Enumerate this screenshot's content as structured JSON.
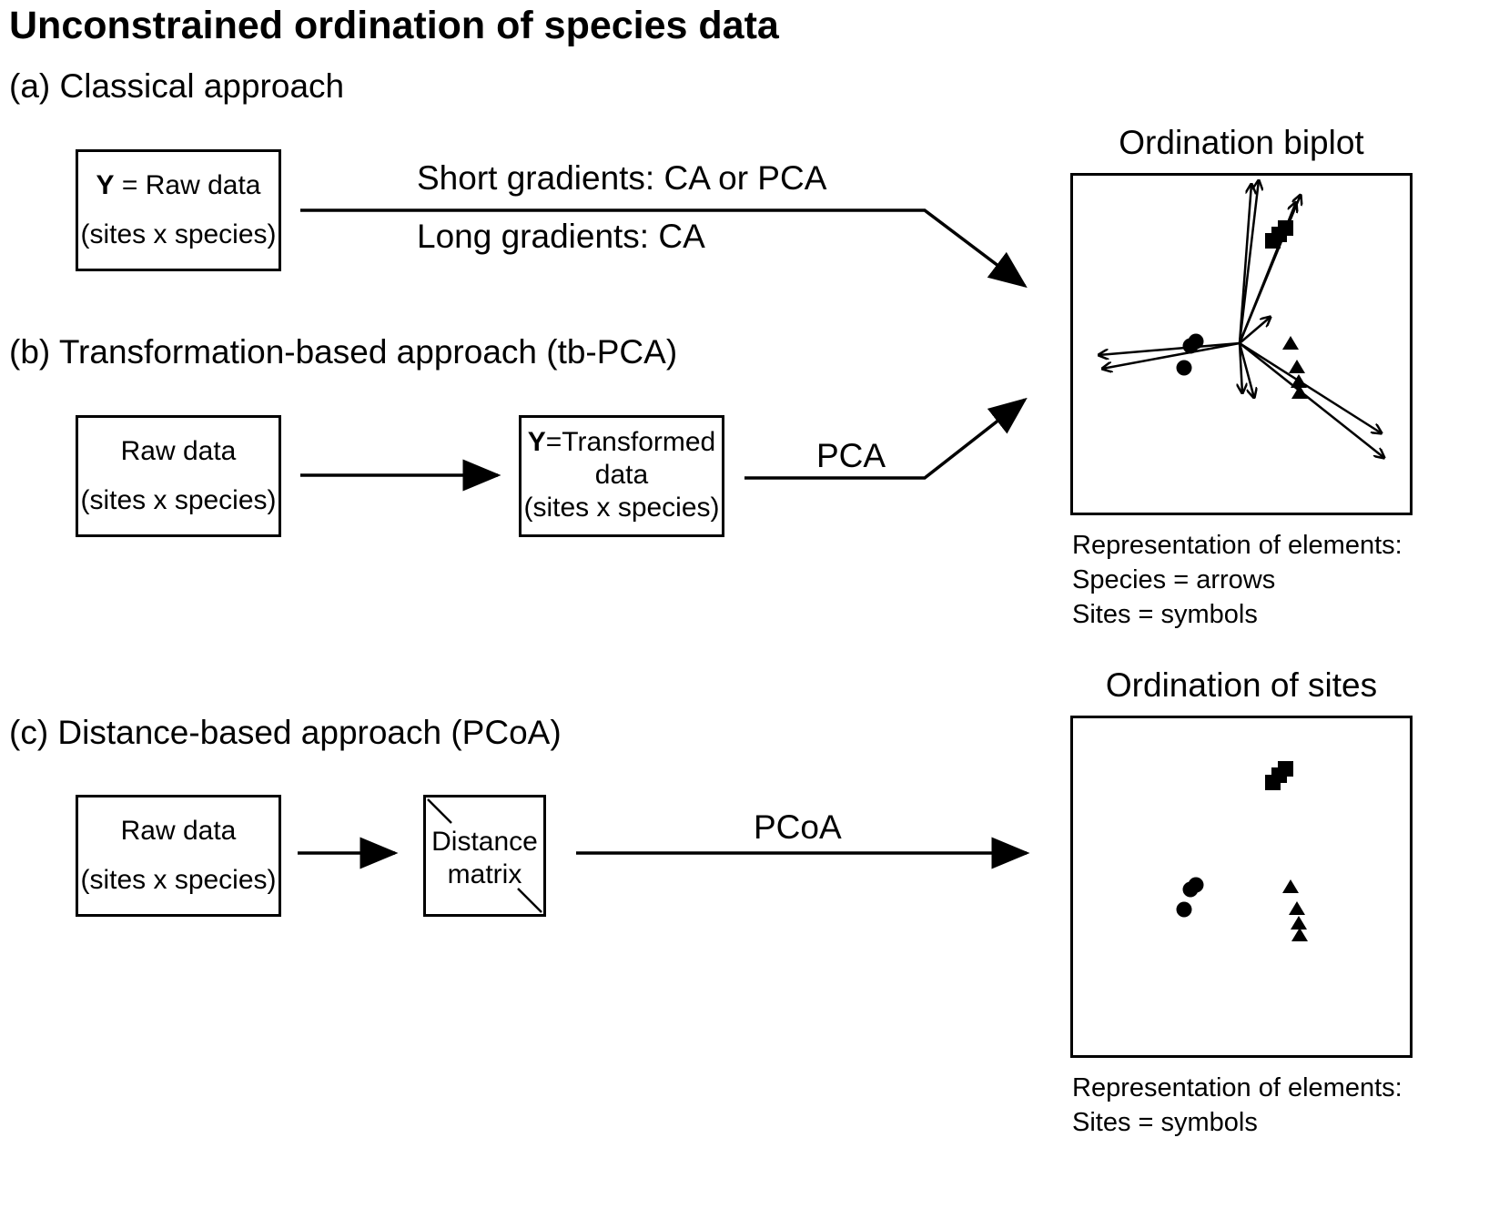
{
  "title": "Unconstrained ordination of species data",
  "sections": {
    "a": "(a) Classical approach",
    "b": "(b) Transformation-based approach (tb-PCA)",
    "c": "(c) Distance-based approach (PCoA)"
  },
  "boxes": {
    "a_raw": {
      "bold": "Y",
      "line1": " = Raw data",
      "line2": "(sites x species)"
    },
    "b_raw": {
      "line1": "Raw data",
      "line2": "(sites x species)"
    },
    "b_trans": {
      "bold": "Y",
      "line1": "=Transformed",
      "line2": "data",
      "line3": "(sites x species)"
    },
    "c_raw": {
      "line1": "Raw data",
      "line2": "(sites x species)"
    },
    "c_dist": {
      "line1": "Distance",
      "line2": "matrix"
    }
  },
  "arrow_labels": {
    "short": "Short gradients: CA or PCA",
    "long": "Long gradients: CA",
    "pca": "PCA",
    "pcoa": "PCoA"
  },
  "biplot": {
    "title": "Ordination biplot",
    "legend": [
      "Representation of elements:",
      "Species = arrows",
      "Sites = symbols"
    ]
  },
  "sites_plot": {
    "title": "Ordination of sites",
    "legend": [
      "Representation of elements:",
      "Sites = symbols"
    ]
  },
  "site_symbols": [
    "square",
    "circle",
    "triangle"
  ]
}
